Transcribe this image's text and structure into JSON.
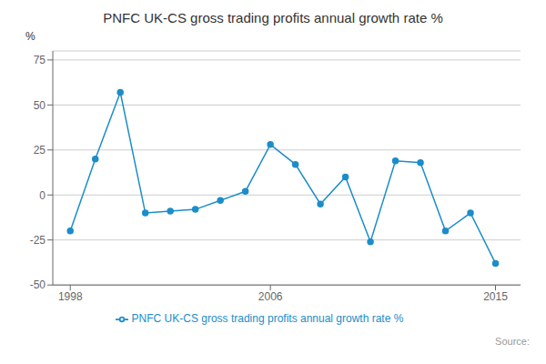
{
  "chart_data": {
    "type": "line",
    "title": "PNFC UK-CS gross trading profits annual growth rate %",
    "y_label": "%",
    "x": [
      1998,
      1999,
      2000,
      2001,
      2002,
      2003,
      2004,
      2005,
      2006,
      2007,
      2008,
      2009,
      2010,
      2011,
      2012,
      2013,
      2014,
      2015
    ],
    "series": [
      {
        "name": "PNFC UK-CS gross trading profits annual growth rate %",
        "color": "#1c8dc8",
        "marker": "circle",
        "values": [
          -20,
          20,
          57,
          -10,
          -9,
          -8,
          -3,
          2,
          28,
          17,
          -5,
          10,
          -26,
          19,
          18,
          -20,
          -10,
          -38
        ]
      }
    ],
    "xlim": [
      1997.3,
      2016.0
    ],
    "xticks": [
      1998,
      2006,
      2015
    ],
    "ylim": [
      -50,
      80
    ],
    "yticks": [
      -50,
      -25,
      0,
      25,
      50,
      75
    ],
    "grid": "y",
    "legend": "bottom",
    "annotations": [
      "Source:"
    ]
  }
}
